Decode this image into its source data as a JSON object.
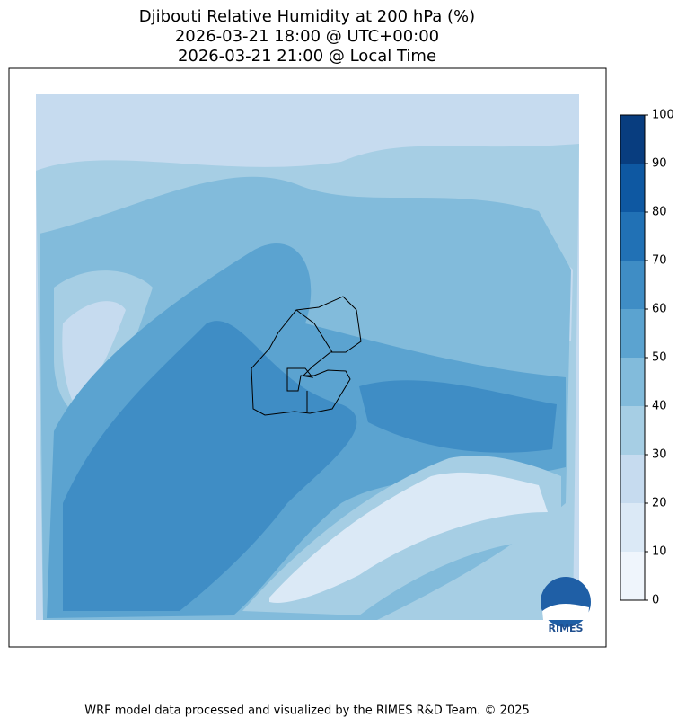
{
  "title_lines": [
    "Djibouti Relative Humidity at 200 hPa (%)",
    "2026-03-21 18:00 @ UTC+00:00",
    "2026-03-21 21:00 @ Local Time"
  ],
  "colorbar": {
    "ticks": [
      0,
      10,
      20,
      30,
      40,
      50,
      60,
      70,
      80,
      90,
      100
    ],
    "colors": [
      "#eff5fc",
      "#dbe9f6",
      "#c6dbef",
      "#a6cee4",
      "#82bbdb",
      "#5ba3d0",
      "#3f8dc5",
      "#2171b5",
      "#0e58a2",
      "#083d7f"
    ]
  },
  "logo": "RIMES",
  "footer": "WRF model data processed and visualized by the RIMES R&D Team. © 2025"
}
